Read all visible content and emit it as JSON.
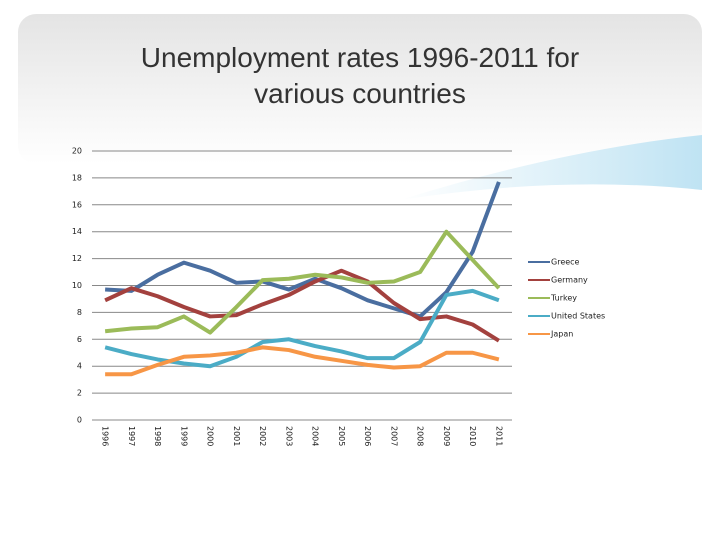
{
  "chart_data": {
    "type": "line",
    "title": "Unemployment rates 1996-2011 for various countries",
    "categories": [
      "1996",
      "1997",
      "1998",
      "1999",
      "2000",
      "2001",
      "2002",
      "2003",
      "2004",
      "2005",
      "2006",
      "2007",
      "2008",
      "2009",
      "2010",
      "2011"
    ],
    "series": [
      {
        "name": "Greece",
        "color": "#4a6ea0",
        "values": [
          9.7,
          9.6,
          10.8,
          11.7,
          11.1,
          10.2,
          10.3,
          9.7,
          10.5,
          9.8,
          8.9,
          8.3,
          7.7,
          9.5,
          12.5,
          17.7
        ]
      },
      {
        "name": "Germany",
        "color": "#a3413e",
        "values": [
          8.9,
          9.8,
          9.2,
          8.4,
          7.7,
          7.8,
          8.6,
          9.3,
          10.3,
          11.1,
          10.3,
          8.7,
          7.5,
          7.7,
          7.1,
          5.9
        ]
      },
      {
        "name": "Turkey",
        "color": "#9bbb59",
        "values": [
          6.6,
          6.8,
          6.9,
          7.7,
          6.5,
          8.4,
          10.4,
          10.5,
          10.8,
          10.6,
          10.2,
          10.3,
          11.0,
          14.0,
          11.9,
          9.8
        ]
      },
      {
        "name": "United States",
        "color": "#4bacc6",
        "values": [
          5.4,
          4.9,
          4.5,
          4.2,
          4.0,
          4.7,
          5.8,
          6.0,
          5.5,
          5.1,
          4.6,
          4.6,
          5.8,
          9.3,
          9.6,
          8.9
        ]
      },
      {
        "name": "Japan",
        "color": "#f79646",
        "values": [
          3.4,
          3.4,
          4.1,
          4.7,
          4.8,
          5.0,
          5.4,
          5.2,
          4.7,
          4.4,
          4.1,
          3.9,
          4.0,
          5.0,
          5.0,
          4.5
        ]
      }
    ],
    "ylim": [
      0,
      20
    ],
    "yticks": [
      0,
      2,
      4,
      6,
      8,
      10,
      12,
      14,
      16,
      18,
      20
    ],
    "grid": true,
    "legend": "right"
  }
}
